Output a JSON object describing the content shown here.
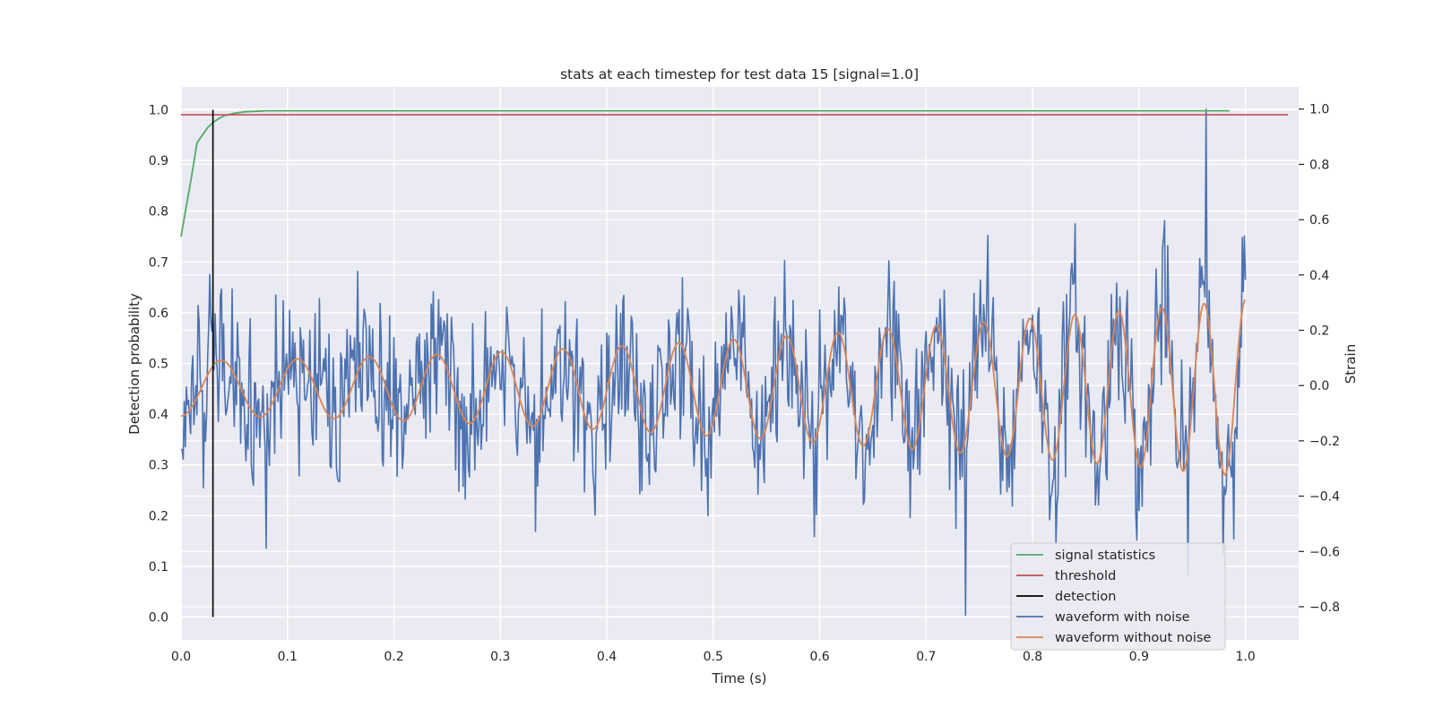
{
  "chart_data": {
    "type": "line",
    "title": "stats at each timestep for test data 15 [signal=1.0]",
    "xlabel": "Time (s)",
    "ylabel_left": "Detection probability",
    "ylabel_right": "Strain",
    "xlim": [
      0.0,
      1.05
    ],
    "ylim_left": [
      -0.045,
      1.045
    ],
    "ylim_right": [
      -0.92,
      1.08
    ],
    "x_ticks": [
      "0.0",
      "0.1",
      "0.2",
      "0.3",
      "0.4",
      "0.5",
      "0.6",
      "0.7",
      "0.8",
      "0.9",
      "1.0"
    ],
    "y_ticks_left": [
      "0.0",
      "0.1",
      "0.2",
      "0.3",
      "0.4",
      "0.5",
      "0.6",
      "0.7",
      "0.8",
      "0.9",
      "1.0"
    ],
    "y_ticks_right": [
      "−0.8",
      "−0.6",
      "−0.4",
      "−0.2",
      "0.0",
      "0.2",
      "0.4",
      "0.6",
      "0.8",
      "1.0"
    ],
    "grid": true,
    "background": "#eaeaf2",
    "legend_position": "lower-right",
    "series": [
      {
        "name": "signal statistics",
        "color": "#55a868",
        "axis": "left",
        "x": [
          0.0,
          0.005,
          0.01,
          0.015,
          0.02,
          0.025,
          0.03,
          0.035,
          0.04,
          0.05,
          0.06,
          0.07,
          0.08,
          0.1,
          0.2,
          0.4,
          0.6,
          0.8,
          0.985
        ],
        "y": [
          0.75,
          0.81,
          0.87,
          0.935,
          0.95,
          0.965,
          0.975,
          0.982,
          0.988,
          0.993,
          0.996,
          0.997,
          0.998,
          0.998,
          0.998,
          0.998,
          0.998,
          0.998,
          0.998
        ]
      },
      {
        "name": "threshold",
        "color": "#c44e52",
        "axis": "left",
        "x": [
          0.0,
          1.04
        ],
        "y": [
          0.99,
          0.99
        ]
      },
      {
        "name": "detection",
        "color": "#000000",
        "axis": "left",
        "x": [
          0.03,
          0.03
        ],
        "y": [
          0.0,
          1.0
        ]
      },
      {
        "name": "waveform with noise",
        "color": "#4c72b0",
        "axis": "right",
        "duration": 1.0,
        "samples": 1000,
        "noise_std": 0.2,
        "max": 1.0,
        "min": -0.83
      },
      {
        "name": "waveform without noise",
        "color": "#dd8452",
        "axis": "right",
        "duration": 1.0,
        "amplitude_start": 0.1,
        "amplitude_end": 0.32,
        "frequency_start": 13,
        "frequency_end": 26
      }
    ]
  }
}
